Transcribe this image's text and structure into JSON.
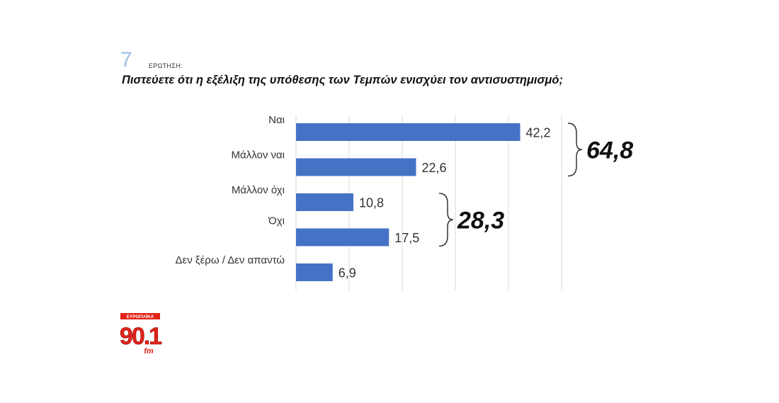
{
  "question": {
    "number": "7",
    "label": "ΕΡΩΤΗΣΗ:",
    "text": "Πιστεύετε ότι η εξέλιξη της υπόθεσης των Τεμπών ενισχύει τον αντισυστημισμό;"
  },
  "chart_data": {
    "type": "bar",
    "orientation": "horizontal",
    "categories": [
      "Ναι",
      "Μάλλον ναι",
      "Μάλλον όχι",
      "Όχι",
      "Δεν ξέρω / Δεν απαντώ"
    ],
    "values": [
      42.2,
      22.6,
      10.8,
      17.5,
      6.9
    ],
    "value_labels": [
      "42,2",
      "22,6",
      "10,8",
      "17,5",
      "6,9"
    ],
    "xlim": [
      0,
      50
    ],
    "grid": true,
    "bar_color": "#4472c4",
    "groups": [
      {
        "label": "64,8",
        "start": 0,
        "end": 1
      },
      {
        "label": "28,3",
        "start": 2,
        "end": 3
      }
    ]
  },
  "logo": {
    "top_text": "ΕΥΡΩΠΑΪΚΑ",
    "main_text": "90.1",
    "sub_text": "fm",
    "color": "#e2231a"
  }
}
